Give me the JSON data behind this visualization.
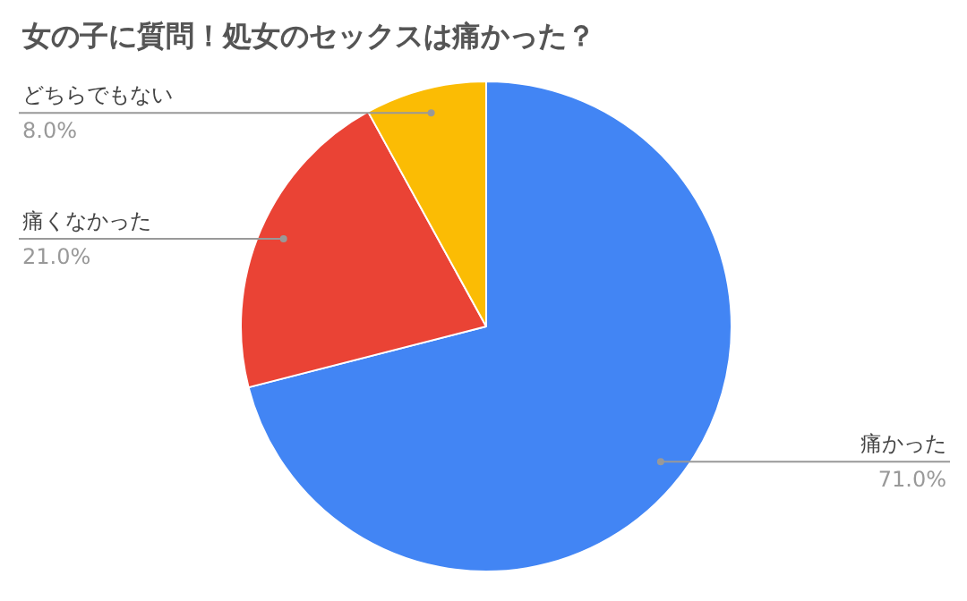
{
  "chart_data": {
    "type": "pie",
    "title": "女の子に質問！処女のセックスは痛かった？",
    "categories": [
      "痛かった",
      "痛くなかった",
      "どちらでもない"
    ],
    "values": [
      71,
      21,
      8
    ],
    "colors": [
      "#4285f4",
      "#ea4335",
      "#fbbc04"
    ],
    "value_labels": [
      "71.0%",
      "21.0%",
      "8.0%"
    ]
  }
}
